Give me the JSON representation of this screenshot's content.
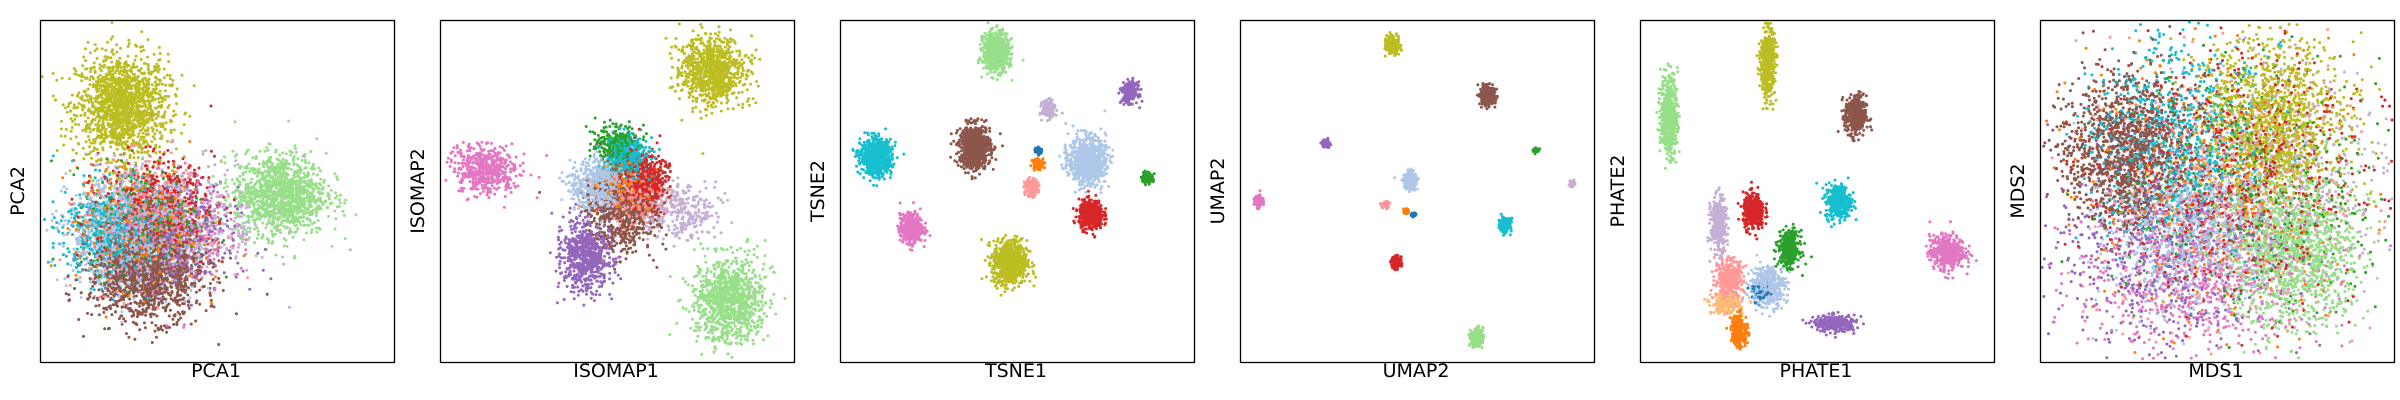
{
  "chart_data": [
    {
      "type": "scatter",
      "xlabel": "PCA1",
      "ylabel": "PCA2",
      "xlim": [
        0,
        100
      ],
      "ylim": [
        0,
        100
      ],
      "ticks": false,
      "grid": false,
      "legend": "none",
      "clusters": [
        {
          "color": "#bcbd22",
          "center": [
            23,
            75
          ],
          "spread": [
            6.5,
            7.5
          ],
          "points": 1500
        },
        {
          "color": "#98df8a",
          "center": [
            68,
            49
          ],
          "spread": [
            6.5,
            6
          ],
          "points": 1200
        },
        {
          "color": "#8c564b",
          "center": [
            30,
            26
          ],
          "spread": [
            8,
            7
          ],
          "points": 1400
        },
        {
          "color": "#aec7e8",
          "center": [
            26,
            38
          ],
          "spread": [
            9,
            8
          ],
          "points": 1100
        },
        {
          "color": "#17becf",
          "center": [
            20,
            38
          ],
          "spread": [
            7,
            7
          ],
          "points": 600
        },
        {
          "color": "#d62728",
          "center": [
            33,
            45
          ],
          "spread": [
            8,
            7
          ],
          "points": 600
        },
        {
          "color": "#9467bd",
          "center": [
            38,
            35
          ],
          "spread": [
            9,
            8
          ],
          "points": 400
        },
        {
          "color": "#2ca02c",
          "center": [
            30,
            42
          ],
          "spread": [
            8,
            8
          ],
          "points": 400
        },
        {
          "color": "#ff7f0e",
          "center": [
            28,
            40
          ],
          "spread": [
            9,
            9
          ],
          "points": 400
        },
        {
          "color": "#e377c2",
          "center": [
            35,
            38
          ],
          "spread": [
            9,
            9
          ],
          "points": 400
        },
        {
          "color": "#ff9896",
          "center": [
            30,
            40
          ],
          "spread": [
            9,
            9
          ],
          "points": 400
        },
        {
          "color": "#c5b0d5",
          "center": [
            45,
            40
          ],
          "spread": [
            10,
            8
          ],
          "points": 300
        }
      ]
    },
    {
      "type": "scatter",
      "xlabel": "ISOMAP1",
      "ylabel": "ISOMAP2",
      "xlim": [
        0,
        100
      ],
      "ylim": [
        0,
        100
      ],
      "ticks": false,
      "grid": false,
      "legend": "none",
      "clusters": [
        {
          "color": "#bcbd22",
          "center": [
            77,
            85
          ],
          "spread": [
            4.5,
            5
          ],
          "points": 900
        },
        {
          "color": "#98df8a",
          "center": [
            82,
            18
          ],
          "spread": [
            5,
            6
          ],
          "points": 1000
        },
        {
          "color": "#e377c2",
          "center": [
            13,
            56
          ],
          "spread": [
            4.5,
            3.5
          ],
          "points": 500
        },
        {
          "color": "#9467bd",
          "center": [
            41,
            31
          ],
          "spread": [
            3.5,
            5
          ],
          "points": 700
        },
        {
          "color": "#8c564b",
          "center": [
            52,
            45
          ],
          "spread": [
            5,
            6
          ],
          "points": 800
        },
        {
          "color": "#aec7e8",
          "center": [
            45,
            52
          ],
          "spread": [
            4,
            4
          ],
          "points": 600
        },
        {
          "color": "#d62728",
          "center": [
            58,
            53
          ],
          "spread": [
            3,
            4
          ],
          "points": 500
        },
        {
          "color": "#17becf",
          "center": [
            53,
            60
          ],
          "spread": [
            3,
            3
          ],
          "points": 400
        },
        {
          "color": "#2ca02c",
          "center": [
            50,
            63
          ],
          "spread": [
            3,
            3
          ],
          "points": 300
        },
        {
          "color": "#ff9896",
          "center": [
            55,
            48
          ],
          "spread": [
            4,
            4
          ],
          "points": 250
        },
        {
          "color": "#c5b0d5",
          "center": [
            68,
            44
          ],
          "spread": [
            5,
            4
          ],
          "points": 300
        },
        {
          "color": "#ff7f0e",
          "center": [
            52,
            50
          ],
          "spread": [
            4,
            4
          ],
          "points": 200
        }
      ]
    },
    {
      "type": "scatter",
      "xlabel": "TSNE1",
      "ylabel": "TSNE2",
      "xlim": [
        0,
        100
      ],
      "ylim": [
        0,
        100
      ],
      "ticks": false,
      "grid": false,
      "legend": "none",
      "clusters": [
        {
          "color": "#98df8a",
          "center": [
            44,
            91
          ],
          "spread": [
            1.8,
            2.8
          ],
          "points": 800
        },
        {
          "color": "#17becf",
          "center": [
            10,
            60
          ],
          "spread": [
            2.2,
            2.5
          ],
          "points": 800
        },
        {
          "color": "#8c564b",
          "center": [
            38,
            63
          ],
          "spread": [
            2.2,
            3.2
          ],
          "points": 800
        },
        {
          "color": "#aec7e8",
          "center": [
            70,
            59
          ],
          "spread": [
            2.6,
            3.4
          ],
          "points": 800
        },
        {
          "color": "#bcbd22",
          "center": [
            48,
            29
          ],
          "spread": [
            2.4,
            3.2
          ],
          "points": 800
        },
        {
          "color": "#e377c2",
          "center": [
            20,
            39
          ],
          "spread": [
            1.6,
            2.1
          ],
          "points": 500
        },
        {
          "color": "#d62728",
          "center": [
            71,
            43
          ],
          "spread": [
            1.7,
            2.1
          ],
          "points": 500
        },
        {
          "color": "#9467bd",
          "center": [
            82,
            79
          ],
          "spread": [
            1.1,
            1.5
          ],
          "points": 250
        },
        {
          "color": "#c5b0d5",
          "center": [
            59,
            74
          ],
          "spread": [
            0.9,
            1.2
          ],
          "points": 200
        },
        {
          "color": "#ff9896",
          "center": [
            54,
            51
          ],
          "spread": [
            0.9,
            1.2
          ],
          "points": 200
        },
        {
          "color": "#ff7f0e",
          "center": [
            56,
            58
          ],
          "spread": [
            0.8,
            0.8
          ],
          "points": 100
        },
        {
          "color": "#2ca02c",
          "center": [
            87,
            54
          ],
          "spread": [
            0.8,
            0.8
          ],
          "points": 100
        },
        {
          "color": "#1f77b4",
          "center": [
            56,
            62
          ],
          "spread": [
            0.5,
            0.5
          ],
          "points": 60
        }
      ]
    },
    {
      "type": "scatter",
      "xlabel": "UMAP2",
      "ylabel": "UMAP2",
      "xlim": [
        0,
        100
      ],
      "ylim": [
        0,
        100
      ],
      "ticks": false,
      "grid": false,
      "legend": "none",
      "clusters": [
        {
          "color": "#bcbd22",
          "center": [
            43,
            93
          ],
          "spread": [
            0.9,
            1.2
          ],
          "points": 300
        },
        {
          "color": "#8c564b",
          "center": [
            70,
            78
          ],
          "spread": [
            1,
            1.3
          ],
          "points": 300
        },
        {
          "color": "#98df8a",
          "center": [
            67,
            7
          ],
          "spread": [
            0.9,
            1.2
          ],
          "points": 300
        },
        {
          "color": "#aec7e8",
          "center": [
            48,
            53
          ],
          "spread": [
            0.9,
            1.2
          ],
          "points": 300
        },
        {
          "color": "#17becf",
          "center": [
            75,
            40
          ],
          "spread": [
            0.8,
            1
          ],
          "points": 250
        },
        {
          "color": "#d62728",
          "center": [
            44,
            29
          ],
          "spread": [
            0.6,
            0.8
          ],
          "points": 200
        },
        {
          "color": "#9467bd",
          "center": [
            24,
            64
          ],
          "spread": [
            0.5,
            0.6
          ],
          "points": 150
        },
        {
          "color": "#e377c2",
          "center": [
            5,
            47
          ],
          "spread": [
            0.5,
            0.8
          ],
          "points": 150
        },
        {
          "color": "#ff9896",
          "center": [
            41,
            46
          ],
          "spread": [
            0.5,
            0.5
          ],
          "points": 80
        },
        {
          "color": "#ff7f0e",
          "center": [
            47,
            44
          ],
          "spread": [
            0.4,
            0.4
          ],
          "points": 60
        },
        {
          "color": "#1f77b4",
          "center": [
            49,
            43
          ],
          "spread": [
            0.3,
            0.3
          ],
          "points": 40
        },
        {
          "color": "#2ca02c",
          "center": [
            84,
            62
          ],
          "spread": [
            0.4,
            0.3
          ],
          "points": 40
        },
        {
          "color": "#c5b0d5",
          "center": [
            94,
            52
          ],
          "spread": [
            0.4,
            0.4
          ],
          "points": 40
        }
      ]
    },
    {
      "type": "scatter",
      "xlabel": "PHATE1",
      "ylabel": "PHATE2",
      "xlim": [
        0,
        100
      ],
      "ylim": [
        0,
        100
      ],
      "ticks": false,
      "grid": false,
      "legend": "none",
      "clusters": [
        {
          "color": "#bcbd22",
          "center": [
            36,
            88
          ],
          "spread": [
            1,
            5
          ],
          "points": 500
        },
        {
          "color": "#98df8a",
          "center": [
            8,
            72
          ],
          "spread": [
            1.2,
            6
          ],
          "points": 500
        },
        {
          "color": "#8c564b",
          "center": [
            61,
            72
          ],
          "spread": [
            1.5,
            3
          ],
          "points": 400
        },
        {
          "color": "#17becf",
          "center": [
            56,
            47
          ],
          "spread": [
            1.8,
            2.5
          ],
          "points": 400
        },
        {
          "color": "#e377c2",
          "center": [
            87,
            32
          ],
          "spread": [
            2.5,
            2.5
          ],
          "points": 450
        },
        {
          "color": "#d62728",
          "center": [
            32,
            44
          ],
          "spread": [
            1.5,
            2.6
          ],
          "points": 400
        },
        {
          "color": "#2ca02c",
          "center": [
            42,
            33
          ],
          "spread": [
            1.5,
            2.6
          ],
          "points": 350
        },
        {
          "color": "#c5b0d5",
          "center": [
            22,
            40
          ],
          "spread": [
            1.1,
            4
          ],
          "points": 350
        },
        {
          "color": "#aec7e8",
          "center": [
            36,
            22
          ],
          "spread": [
            2.5,
            3
          ],
          "points": 400
        },
        {
          "color": "#ff9896",
          "center": [
            25,
            24
          ],
          "spread": [
            2,
            3
          ],
          "points": 350
        },
        {
          "color": "#9467bd",
          "center": [
            55,
            11
          ],
          "spread": [
            3,
            1.2
          ],
          "points": 300
        },
        {
          "color": "#ffbb78",
          "center": [
            24,
            17
          ],
          "spread": [
            2,
            1.5
          ],
          "points": 250
        },
        {
          "color": "#ff7f0e",
          "center": [
            28,
            9
          ],
          "spread": [
            1.2,
            2.5
          ],
          "points": 200
        },
        {
          "color": "#1f77b4",
          "center": [
            34,
            20
          ],
          "spread": [
            1.2,
            1.2
          ],
          "points": 100
        }
      ]
    },
    {
      "type": "scatter",
      "xlabel": "MDS1",
      "ylabel": "MDS2",
      "xlim": [
        0,
        100
      ],
      "ylim": [
        0,
        100
      ],
      "ticks": false,
      "grid": false,
      "legend": "none",
      "clusters": [
        {
          "color": "#8c564b",
          "center": [
            24,
            62
          ],
          "spread": [
            9,
            11
          ],
          "points": 1300
        },
        {
          "color": "#bcbd22",
          "center": [
            66,
            71
          ],
          "spread": [
            10,
            12
          ],
          "points": 1300
        },
        {
          "color": "#98df8a",
          "center": [
            72,
            32
          ],
          "spread": [
            9,
            11
          ],
          "points": 1300
        },
        {
          "color": "#aec7e8",
          "center": [
            42,
            40
          ],
          "spread": [
            12,
            12
          ],
          "points": 1000
        },
        {
          "color": "#17becf",
          "center": [
            38,
            65
          ],
          "spread": [
            12,
            14
          ],
          "points": 800
        },
        {
          "color": "#d62728",
          "center": [
            55,
            55
          ],
          "spread": [
            18,
            18
          ],
          "points": 800
        },
        {
          "color": "#e377c2",
          "center": [
            45,
            25
          ],
          "spread": [
            18,
            12
          ],
          "points": 600
        },
        {
          "color": "#9467bd",
          "center": [
            35,
            30
          ],
          "spread": [
            16,
            14
          ],
          "points": 600
        },
        {
          "color": "#2ca02c",
          "center": [
            60,
            50
          ],
          "spread": [
            18,
            18
          ],
          "points": 500
        },
        {
          "color": "#ff9896",
          "center": [
            50,
            45
          ],
          "spread": [
            20,
            20
          ],
          "points": 500
        },
        {
          "color": "#c5b0d5",
          "center": [
            70,
            55
          ],
          "spread": [
            16,
            16
          ],
          "points": 400
        },
        {
          "color": "#ff7f0e",
          "center": [
            50,
            50
          ],
          "spread": [
            20,
            20
          ],
          "points": 400
        }
      ]
    }
  ]
}
